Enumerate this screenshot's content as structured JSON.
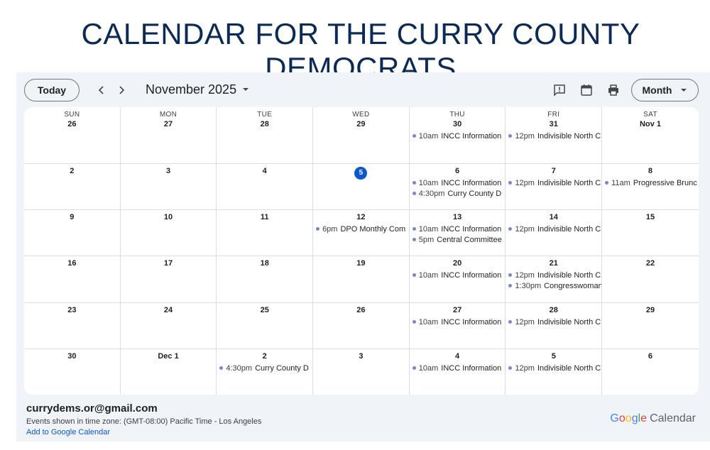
{
  "page_title": "CALENDAR FOR THE CURRY COUNTY DEMOCRATS",
  "toolbar": {
    "today_label": "Today",
    "month_label": "November 2025",
    "view_label": "Month",
    "icons": [
      "chevron-left-icon",
      "chevron-right-icon",
      "caret-down-icon",
      "feedback-icon",
      "calendar-icon",
      "print-icon"
    ]
  },
  "weekdays": [
    "SUN",
    "MON",
    "TUE",
    "WED",
    "THU",
    "FRI",
    "SAT"
  ],
  "weeks": [
    {
      "days": [
        {
          "label": "26",
          "events": []
        },
        {
          "label": "27",
          "events": []
        },
        {
          "label": "28",
          "events": []
        },
        {
          "label": "29",
          "events": []
        },
        {
          "label": "30",
          "events": [
            {
              "time": "10am",
              "title": "INCC Information"
            }
          ]
        },
        {
          "label": "31",
          "events": [
            {
              "time": "12pm",
              "title": "Indivisible North C"
            }
          ]
        },
        {
          "label": "Nov 1",
          "events": []
        }
      ]
    },
    {
      "days": [
        {
          "label": "2",
          "events": []
        },
        {
          "label": "3",
          "events": []
        },
        {
          "label": "4",
          "events": []
        },
        {
          "label": "5",
          "today": true,
          "events": []
        },
        {
          "label": "6",
          "events": [
            {
              "time": "10am",
              "title": "INCC Information"
            },
            {
              "time": "4:30pm",
              "title": "Curry County D"
            }
          ]
        },
        {
          "label": "7",
          "events": [
            {
              "time": "12pm",
              "title": "Indivisible North C"
            }
          ]
        },
        {
          "label": "8",
          "events": [
            {
              "time": "11am",
              "title": "Progressive Brunc"
            }
          ]
        }
      ]
    },
    {
      "days": [
        {
          "label": "9",
          "events": []
        },
        {
          "label": "10",
          "events": []
        },
        {
          "label": "11",
          "events": []
        },
        {
          "label": "12",
          "events": [
            {
              "time": "6pm",
              "title": "DPO Monthly Com"
            }
          ]
        },
        {
          "label": "13",
          "events": [
            {
              "time": "10am",
              "title": "INCC Information"
            },
            {
              "time": "5pm",
              "title": "Central Committee"
            }
          ]
        },
        {
          "label": "14",
          "events": [
            {
              "time": "12pm",
              "title": "Indivisible North C"
            }
          ]
        },
        {
          "label": "15",
          "events": []
        }
      ]
    },
    {
      "days": [
        {
          "label": "16",
          "events": []
        },
        {
          "label": "17",
          "events": []
        },
        {
          "label": "18",
          "events": []
        },
        {
          "label": "19",
          "events": []
        },
        {
          "label": "20",
          "events": [
            {
              "time": "10am",
              "title": "INCC Information"
            }
          ]
        },
        {
          "label": "21",
          "events": [
            {
              "time": "12pm",
              "title": "Indivisible North C"
            },
            {
              "time": "1:30pm",
              "title": "Congresswoman"
            }
          ]
        },
        {
          "label": "22",
          "events": []
        }
      ]
    },
    {
      "days": [
        {
          "label": "23",
          "events": []
        },
        {
          "label": "24",
          "events": []
        },
        {
          "label": "25",
          "events": []
        },
        {
          "label": "26",
          "events": []
        },
        {
          "label": "27",
          "events": [
            {
              "time": "10am",
              "title": "INCC Information"
            }
          ]
        },
        {
          "label": "28",
          "events": [
            {
              "time": "12pm",
              "title": "Indivisible North C"
            }
          ]
        },
        {
          "label": "29",
          "events": []
        }
      ]
    },
    {
      "days": [
        {
          "label": "30",
          "events": []
        },
        {
          "label": "Dec 1",
          "events": []
        },
        {
          "label": "2",
          "events": [
            {
              "time": "4:30pm",
              "title": "Curry County D"
            }
          ]
        },
        {
          "label": "3",
          "events": []
        },
        {
          "label": "4",
          "events": [
            {
              "time": "10am",
              "title": "INCC Information"
            }
          ]
        },
        {
          "label": "5",
          "events": [
            {
              "time": "12pm",
              "title": "Indivisible North C"
            }
          ]
        },
        {
          "label": "6",
          "events": []
        }
      ]
    }
  ],
  "footer": {
    "account": "currydems.or@gmail.com",
    "timezone_note": "Events shown in time zone: (GMT-08:00) Pacific Time - Los Angeles",
    "add_link": "Add to Google Calendar",
    "brand": {
      "letters": [
        "G",
        "o",
        "o",
        "g",
        "l",
        "e"
      ],
      "product": "Calendar"
    }
  },
  "colors": {
    "title": "#0b2a55",
    "background": "#f0f4f9",
    "today_circle": "#0b57d0",
    "event_dot": "#7986cb",
    "link": "#0b57d0"
  }
}
